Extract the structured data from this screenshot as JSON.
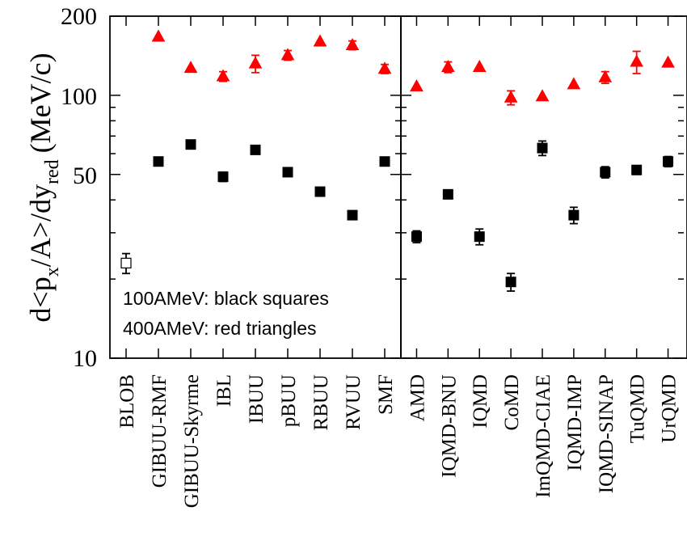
{
  "chart_data": {
    "type": "scatter",
    "y_scale": "log",
    "ylim": [
      10,
      200
    ],
    "yticks": [
      {
        "value": 10,
        "label": "10"
      },
      {
        "value": 50,
        "label": "50"
      },
      {
        "value": 100,
        "label": "100"
      },
      {
        "value": 200,
        "label": "200"
      }
    ],
    "ylabel": {
      "main1": "d<p",
      "sub1": "x",
      "main2": "/A>/dy",
      "sub2": "red",
      "unit": "(MeV/c)"
    },
    "panels": [
      {
        "categories": [
          "BLOB",
          "GIBUU-RMF",
          "GIBUU-Skyrme",
          "IBL",
          "IBUU",
          "pBUU",
          "RBUU",
          "RVUU",
          "SMF"
        ],
        "series": [
          {
            "key": "100AMeV",
            "color": "#000000",
            "marker": "square",
            "points": [
              {
                "category": "BLOB",
                "value": 23,
                "err": 2,
                "open": true
              },
              {
                "category": "GIBUU-RMF",
                "value": 56,
                "err": 0
              },
              {
                "category": "GIBUU-Skyrme",
                "value": 65,
                "err": 1.5
              },
              {
                "category": "IBL",
                "value": 49,
                "err": 2
              },
              {
                "category": "IBUU",
                "value": 62,
                "err": 0
              },
              {
                "category": "pBUU",
                "value": 51,
                "err": 0
              },
              {
                "category": "RBUU",
                "value": 43,
                "err": 1.5
              },
              {
                "category": "RVUU",
                "value": 35,
                "err": 0
              },
              {
                "category": "SMF",
                "value": 56,
                "err": 2
              }
            ]
          },
          {
            "key": "400AMeV",
            "color": "#ff0000",
            "marker": "triangle",
            "points": [
              {
                "category": "GIBUU-RMF",
                "value": 167,
                "err": 0
              },
              {
                "category": "GIBUU-Skyrme",
                "value": 127,
                "err": 0
              },
              {
                "category": "IBL",
                "value": 118,
                "err": 5
              },
              {
                "category": "IBUU",
                "value": 132,
                "err": 10
              },
              {
                "category": "pBUU",
                "value": 142,
                "err": 6
              },
              {
                "category": "RBUU",
                "value": 160,
                "err": 0
              },
              {
                "category": "RVUU",
                "value": 155,
                "err": 6
              },
              {
                "category": "SMF",
                "value": 126,
                "err": 5
              }
            ]
          }
        ],
        "legend": [
          {
            "text": "100AMeV: black squares"
          },
          {
            "text": "400AMeV: red triangles"
          }
        ]
      },
      {
        "categories": [
          "AMD",
          "IQMD-BNU",
          "IQMD",
          "CoMD",
          "ImQMD-CIAE",
          "IQMD-IMP",
          "IQMD-SINAP",
          "TuQMD",
          "UrQMD"
        ],
        "series": [
          {
            "key": "100AMeV",
            "color": "#000000",
            "marker": "square",
            "points": [
              {
                "category": "AMD",
                "value": 29,
                "err": 1.5
              },
              {
                "category": "IQMD-BNU",
                "value": 42,
                "err": 1.5
              },
              {
                "category": "IQMD",
                "value": 29,
                "err": 2
              },
              {
                "category": "CoMD",
                "value": 19.5,
                "err": 1.5
              },
              {
                "category": "ImQMD-CIAE",
                "value": 63,
                "err": 4
              },
              {
                "category": "IQMD-IMP",
                "value": 35,
                "err": 2.5
              },
              {
                "category": "IQMD-SINAP",
                "value": 51,
                "err": 2.5
              },
              {
                "category": "TuQMD",
                "value": 52,
                "err": 2
              },
              {
                "category": "UrQMD",
                "value": 56,
                "err": 2.5
              }
            ]
          },
          {
            "key": "400AMeV",
            "color": "#ff0000",
            "marker": "triangle",
            "points": [
              {
                "category": "AMD",
                "value": 108,
                "err": 0
              },
              {
                "category": "IQMD-BNU",
                "value": 128,
                "err": 6
              },
              {
                "category": "IQMD",
                "value": 128,
                "err": 0
              },
              {
                "category": "CoMD",
                "value": 98,
                "err": 6
              },
              {
                "category": "ImQMD-CIAE",
                "value": 99,
                "err": 0
              },
              {
                "category": "IQMD-IMP",
                "value": 110,
                "err": 0
              },
              {
                "category": "IQMD-SINAP",
                "value": 117,
                "err": 6
              },
              {
                "category": "TuQMD",
                "value": 134,
                "err": 13
              },
              {
                "category": "UrQMD",
                "value": 133,
                "err": 0
              }
            ]
          }
        ]
      }
    ]
  }
}
